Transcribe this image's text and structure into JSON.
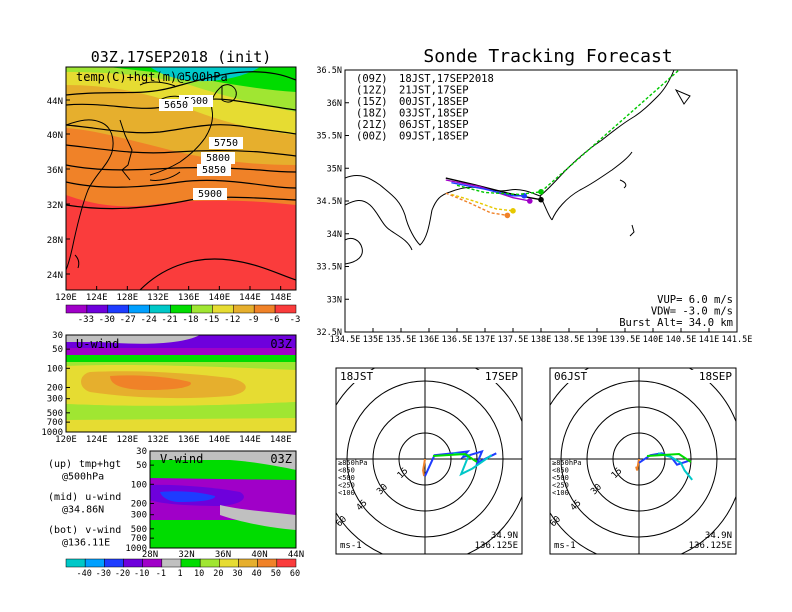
{
  "colors": {
    "temp": [
      "#a000c8",
      "#6e00dc",
      "#1e3cff",
      "#00a0ff",
      "#00c8c8",
      "#00dc00",
      "#a0e632",
      "#e6dc32",
      "#e6af2d",
      "#f08228",
      "#fa3c3c"
    ],
    "wind": [
      "#00c8c8",
      "#00a0ff",
      "#1e3cff",
      "#6e00dc",
      "#a000c8",
      "#c0c0c0",
      "#00dc00",
      "#a0e632",
      "#e6dc32",
      "#e6af2d",
      "#f08228",
      "#fa3c3c"
    ],
    "track": {
      "09Z": "#000000",
      "12Z": "#a000c8",
      "15Z": "#1e3cff",
      "18Z": "#00dc00",
      "21Z": "#e6dc32",
      "00Z": "#f08228"
    }
  },
  "left": {
    "title": "03Z,17SEP2018 (init)",
    "map_label": "temp(C)+hgt(m)@500hPa",
    "contours": [
      "5600",
      "5650",
      "5750",
      "5800",
      "5850",
      "5900"
    ],
    "lat_ticks": [
      "44N",
      "40N",
      "36N",
      "32N",
      "28N",
      "24N"
    ],
    "lon_ticks": [
      "120E",
      "124E",
      "128E",
      "132E",
      "136E",
      "140E",
      "144E",
      "148E"
    ],
    "temp_scale": [
      "-33",
      "-30",
      "-27",
      "-24",
      "-21",
      "-18",
      "-15",
      "-12",
      "-9",
      "-6",
      "-3"
    ],
    "uwind": {
      "label": "U-wind",
      "time": "03Z",
      "p_ticks": [
        "30",
        "50",
        "100",
        "200",
        "300",
        "500",
        "700",
        "1000"
      ],
      "lon_ticks": [
        "120E",
        "124E",
        "128E",
        "132E",
        "136E",
        "140E",
        "144E",
        "148E"
      ]
    },
    "vwind": {
      "label": "V-wind",
      "time": "03Z",
      "p_ticks": [
        "30",
        "50",
        "100",
        "200",
        "300",
        "500",
        "700",
        "1000"
      ],
      "lat_ticks": [
        "28N",
        "32N",
        "36N",
        "40N",
        "44N"
      ]
    },
    "notes": [
      {
        "k": "(up)",
        "v": "tmp+hgt"
      },
      {
        "k": "",
        "v": "@500hPa"
      },
      {
        "k": "(mid)",
        "v": "u-wind"
      },
      {
        "k": "",
        "v": "@34.86N"
      },
      {
        "k": "(bot)",
        "v": "v-wind"
      },
      {
        "k": "",
        "v": "@136.11E"
      }
    ],
    "wind_scale": [
      "-40",
      "-30",
      "-20",
      "-10",
      "-1",
      "1",
      "10",
      "20",
      "30",
      "40",
      "50",
      "60"
    ]
  },
  "tracking": {
    "title": "Sonde Tracking Forecast",
    "legend": [
      {
        "code": "(09Z)",
        "time": "18JST,17SEP2018",
        "color": "#000000"
      },
      {
        "code": "(12Z)",
        "time": "21JST,17SEP",
        "color": "#a000c8"
      },
      {
        "code": "(15Z)",
        "time": "00JST,18SEP",
        "color": "#1e3cff"
      },
      {
        "code": "(18Z)",
        "time": "03JST,18SEP",
        "color": "#00c800"
      },
      {
        "code": "(21Z)",
        "time": "06JST,18SEP",
        "color": "#e6c800"
      },
      {
        "code": "(00Z)",
        "time": "09JST,18SEP",
        "color": "#f08228"
      }
    ],
    "params": [
      "VUP= 6.0 m/s",
      "VDW= -3.0 m/s",
      "Burst Alt= 34.0 km"
    ],
    "lat_ticks": [
      "36.5N",
      "36N",
      "35.5N",
      "35N",
      "34.5N",
      "34N",
      "33.5N",
      "33N",
      "32.5N"
    ],
    "lon_ticks": [
      "134.5E",
      "135E",
      "135.5E",
      "136E",
      "136.5E",
      "137E",
      "137.5E",
      "138E",
      "138.5E",
      "139E",
      "139.5E",
      "140E",
      "140.5E",
      "141E",
      "141.5E"
    ]
  },
  "hodographs": [
    {
      "time": "18JST",
      "date": "17SEP",
      "rings": [
        "15",
        "30",
        "45",
        "60"
      ],
      "unit": "ms-1",
      "lat": "34.9N",
      "lon": "136.125E",
      "levels": [
        "≥850hPa",
        "<850",
        "<500",
        "<250",
        "<100"
      ]
    },
    {
      "time": "06JST",
      "date": "18SEP",
      "rings": [
        "15",
        "30",
        "45",
        "60"
      ],
      "unit": "ms-1",
      "lat": "34.9N",
      "lon": "136.125E",
      "levels": [
        "≥850hPa",
        "<850",
        "<500",
        "<250",
        "<100"
      ]
    }
  ],
  "chart_data": [
    {
      "type": "heatmap",
      "title": "03Z,17SEP2018 (init)",
      "label": "temp(C)+hgt(m)@500hPa",
      "x_range": [
        120,
        150
      ],
      "y_range": [
        22,
        48
      ],
      "contour_levels": [
        5600,
        5650,
        5750,
        5800,
        5850,
        5900
      ],
      "colorbar": [
        -33,
        -30,
        -27,
        -24,
        -21,
        -18,
        -15,
        -12,
        -9,
        -6,
        -3
      ]
    },
    {
      "type": "line",
      "title": "Sonde Tracking Forecast",
      "x_range": [
        134.5,
        141.5
      ],
      "y_range": [
        32.5,
        36.5
      ],
      "series": [
        {
          "name": "(09Z) 18JST,17SEP2018",
          "x": [
            136.3,
            136.8,
            137.4,
            137.8,
            138.0
          ],
          "y": [
            34.85,
            34.75,
            34.62,
            34.55,
            34.52
          ]
        },
        {
          "name": "(12Z) 21JST,17SEP",
          "x": [
            136.3,
            136.9,
            137.5,
            137.8
          ],
          "y": [
            34.82,
            34.72,
            34.55,
            34.5
          ]
        },
        {
          "name": "(15Z) 00JST,18SEP",
          "x": [
            136.4,
            137.0,
            137.5,
            137.7
          ],
          "y": [
            34.78,
            34.68,
            34.58,
            34.58
          ]
        },
        {
          "name": "(18Z) 03JST,18SEP",
          "x": [
            136.5,
            137.0,
            137.6,
            138.0,
            141.1
          ],
          "y": [
            34.74,
            34.63,
            34.6,
            34.64,
            36.98
          ]
        },
        {
          "name": "(21Z) 06JST,18SEP",
          "x": [
            136.4,
            136.8,
            137.2,
            137.5
          ],
          "y": [
            34.6,
            34.5,
            34.38,
            34.35
          ]
        },
        {
          "name": "(00Z) 09JST,18SEP",
          "x": [
            136.3,
            136.7,
            137.1,
            137.4
          ],
          "y": [
            34.62,
            34.48,
            34.32,
            34.28
          ]
        }
      ],
      "VUP": 6.0,
      "VDW": -3.0,
      "burst_alt_km": 34.0
    },
    {
      "type": "heatmap",
      "label": "U-wind",
      "time": "03Z",
      "x_range": [
        120,
        150
      ],
      "y_levels_hPa": [
        1000,
        700,
        500,
        300,
        200,
        100,
        50,
        30
      ],
      "colorbar": [
        -40,
        -30,
        -20,
        -10,
        -1,
        1,
        10,
        20,
        30,
        40,
        50,
        60
      ]
    },
    {
      "type": "heatmap",
      "label": "V-wind",
      "time": "03Z",
      "x_range": [
        28,
        44
      ],
      "y_levels_hPa": [
        1000,
        700,
        500,
        300,
        200,
        100,
        50,
        30
      ],
      "colorbar": [
        -40,
        -30,
        -20,
        -10,
        -1,
        1,
        10,
        20,
        30,
        40,
        50,
        60
      ]
    }
  ]
}
